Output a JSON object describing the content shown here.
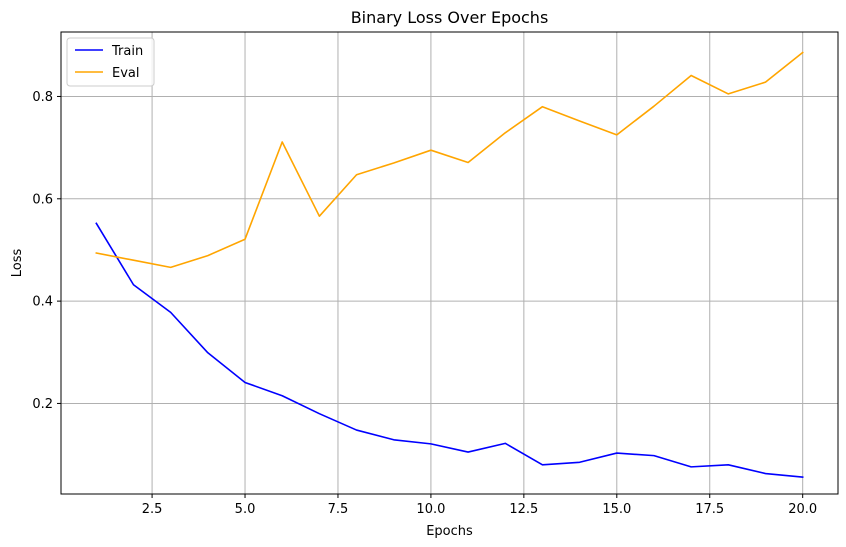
{
  "chart_data": {
    "type": "line",
    "title": "Binary Loss Over Epochs",
    "xlabel": "Epochs",
    "ylabel": "Loss",
    "xlim": [
      0.05,
      20.95
    ],
    "ylim": [
      0.023,
      0.926
    ],
    "xticks": [
      2.5,
      5.0,
      7.5,
      10.0,
      12.5,
      15.0,
      17.5,
      20.0
    ],
    "xtick_labels": [
      "2.5",
      "5.0",
      "7.5",
      "10.0",
      "12.5",
      "15.0",
      "17.5",
      "20.0"
    ],
    "yticks": [
      0.2,
      0.4,
      0.6,
      0.8
    ],
    "ytick_labels": [
      "0.2",
      "0.4",
      "0.6",
      "0.8"
    ],
    "grid": true,
    "legend_position": "top-left",
    "x": [
      1,
      2,
      3,
      4,
      5,
      6,
      7,
      8,
      9,
      10,
      11,
      12,
      13,
      14,
      15,
      16,
      17,
      18,
      19,
      20
    ],
    "series": [
      {
        "name": "Train",
        "color": "#0000ff",
        "values": [
          0.552,
          0.432,
          0.378,
          0.299,
          0.241,
          0.215,
          0.18,
          0.148,
          0.129,
          0.121,
          0.105,
          0.122,
          0.08,
          0.085,
          0.103,
          0.098,
          0.076,
          0.08,
          0.063,
          0.056
        ]
      },
      {
        "name": "Eval",
        "color": "#ffa500",
        "values": [
          0.494,
          0.48,
          0.466,
          0.489,
          0.521,
          0.711,
          0.566,
          0.647,
          0.67,
          0.695,
          0.671,
          0.729,
          0.78,
          0.752,
          0.725,
          0.781,
          0.841,
          0.805,
          0.828,
          0.886
        ]
      }
    ]
  }
}
